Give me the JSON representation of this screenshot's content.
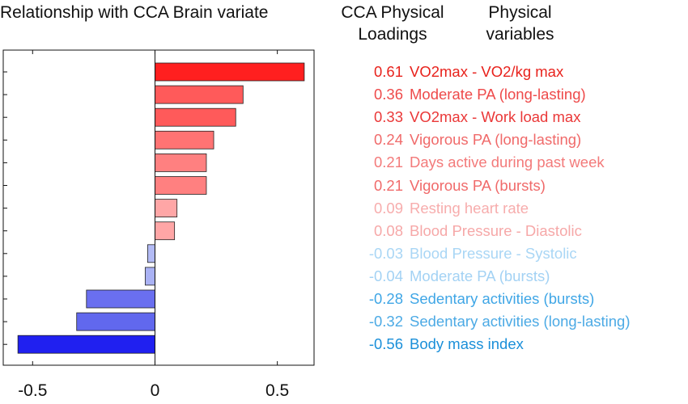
{
  "header": {
    "chart_title": "Relationship with CCA Brain variate",
    "loadings_header": [
      "CCA Physical",
      "Loadings"
    ],
    "variables_header": [
      "Physical",
      "variables"
    ]
  },
  "chart_data": {
    "type": "bar",
    "orientation": "horizontal",
    "title": "Relationship with CCA Brain variate",
    "xlim": [
      -0.62,
      0.65
    ],
    "xticks": [
      -0.5,
      0,
      0.5
    ],
    "xtick_labels": [
      "-0.5",
      "0",
      "0.5"
    ],
    "grid": false,
    "legend": "none",
    "categories": [
      "VO2max - VO2/kg max",
      "Moderate PA (long-lasting)",
      "VO2max - Work load max",
      "Vigorous PA (long-lasting)",
      "Days active during past week",
      "Vigorous PA (bursts)",
      "Resting heart rate",
      "Blood Pressure - Diastolic",
      "Blood Pressure - Systolic",
      "Moderate PA (bursts)",
      "Sedentary activities (bursts)",
      "Sedentary activities (long-lasting)",
      "Body mass index"
    ],
    "values": [
      0.61,
      0.36,
      0.33,
      0.24,
      0.21,
      0.21,
      0.09,
      0.08,
      -0.03,
      -0.04,
      -0.28,
      -0.32,
      -0.56
    ],
    "value_labels": [
      "0.61",
      "0.36",
      "0.33",
      "0.24",
      "0.21",
      "0.21",
      "0.09",
      "0.08",
      "-0.03",
      "-0.04",
      "-0.28",
      "-0.32",
      "-0.56"
    ],
    "bar_colors": [
      "#ff1f1f",
      "#ff5a5a",
      "#ff5a5a",
      "#ff7373",
      "#ff8080",
      "#ff8080",
      "#ffa6a6",
      "#ffa6a6",
      "#b3bbf5",
      "#aab2f4",
      "#6a6ff0",
      "#6168ee",
      "#2020f0"
    ],
    "label_colors": [
      "#e8221c",
      "#ee4a4a",
      "#ea3838",
      "#f06a6a",
      "#f37a7a",
      "#f06a6a",
      "#f7adad",
      "#f6a8a8",
      "#a9d6f5",
      "#a3d2f4",
      "#3fa6e6",
      "#4caae5",
      "#1a8fd9"
    ]
  }
}
